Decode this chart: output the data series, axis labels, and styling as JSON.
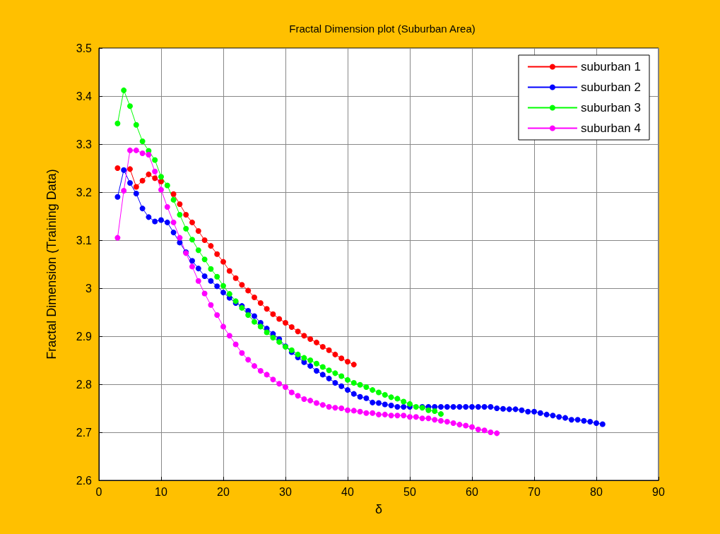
{
  "chart_data": {
    "type": "line",
    "title": "Fractal Dimension plot (Suburban Area)",
    "xlabel": "δ",
    "ylabel": "Fractal Dimension (Training Data)",
    "x": [
      3,
      4,
      5,
      6,
      7,
      8,
      9,
      10,
      11,
      12,
      13,
      14,
      15,
      16,
      17,
      18,
      19,
      20,
      21,
      22,
      23,
      24,
      25,
      26,
      27,
      28,
      29,
      30,
      31,
      32,
      33,
      34,
      35,
      36,
      37,
      38,
      39,
      40,
      41,
      42,
      43,
      44,
      45,
      46,
      47,
      48,
      49,
      50,
      51,
      52,
      53,
      54,
      55,
      56,
      57,
      58,
      59,
      60,
      61,
      62,
      63,
      64,
      65,
      66,
      67,
      68,
      69,
      70,
      71,
      72,
      73,
      74,
      75,
      76,
      77,
      78,
      79,
      80,
      81
    ],
    "series": [
      {
        "name": "suburban 1",
        "color": "#ff0000",
        "values": [
          3.25,
          null,
          3.248,
          3.211,
          3.224,
          3.237,
          3.229,
          3.222,
          null,
          3.196,
          3.175,
          3.153,
          3.137,
          3.119,
          3.1,
          3.088,
          3.071,
          3.055,
          3.036,
          3.021,
          3.007,
          2.995,
          2.981,
          2.969,
          2.957,
          2.946,
          2.936,
          2.928,
          2.919,
          2.91,
          2.901,
          2.894,
          2.887,
          2.878,
          2.871,
          2.862,
          2.854,
          2.847,
          2.841,
          null,
          null,
          null,
          null,
          null,
          null,
          null,
          null,
          null,
          null,
          null,
          null,
          null,
          null,
          null,
          null,
          null,
          null,
          null,
          null,
          null,
          null,
          null,
          null,
          null,
          null,
          null,
          null,
          null,
          null,
          null,
          null,
          null,
          null,
          null,
          null,
          null,
          null,
          null,
          null
        ]
      },
      {
        "name": "suburban 2",
        "color": "#0000ff",
        "values": [
          3.19,
          3.246,
          3.219,
          3.197,
          3.166,
          3.148,
          3.139,
          3.142,
          3.137,
          3.116,
          3.095,
          3.075,
          3.057,
          3.041,
          3.025,
          3.015,
          3.004,
          2.991,
          2.98,
          2.969,
          2.963,
          2.953,
          2.942,
          2.928,
          2.916,
          2.905,
          2.894,
          2.879,
          2.867,
          2.856,
          2.846,
          2.838,
          2.828,
          2.82,
          2.812,
          2.803,
          2.796,
          2.788,
          2.78,
          2.774,
          2.771,
          2.762,
          2.761,
          2.758,
          2.756,
          2.753,
          2.753,
          2.753,
          null,
          2.753,
          2.753,
          2.753,
          2.753,
          2.753,
          2.753,
          2.753,
          2.753,
          2.753,
          2.753,
          2.753,
          2.753,
          2.75,
          2.749,
          2.748,
          2.748,
          2.746,
          2.743,
          2.743,
          2.74,
          2.737,
          2.735,
          2.732,
          2.73,
          2.726,
          2.726,
          2.724,
          2.722,
          2.719,
          2.717
        ]
      },
      {
        "name": "suburban 3",
        "color": "#00ff00",
        "values": [
          3.343,
          3.412,
          3.379,
          3.34,
          3.306,
          3.286,
          3.267,
          3.232,
          3.214,
          3.184,
          3.153,
          3.124,
          3.101,
          3.079,
          3.06,
          3.04,
          3.024,
          3.005,
          2.988,
          2.973,
          2.959,
          2.944,
          2.93,
          2.92,
          2.908,
          2.897,
          2.888,
          2.878,
          2.871,
          2.862,
          2.855,
          2.85,
          2.843,
          2.836,
          2.829,
          2.823,
          2.817,
          2.809,
          2.803,
          2.799,
          2.794,
          2.788,
          2.783,
          2.778,
          2.773,
          2.77,
          2.764,
          2.759,
          2.753,
          2.751,
          2.746,
          2.744,
          2.738,
          null,
          null,
          null,
          null,
          null,
          null,
          null,
          null,
          null,
          null,
          null,
          null,
          null,
          null,
          null,
          null,
          null,
          null,
          null,
          null,
          null,
          null,
          null,
          null,
          null,
          null
        ]
      },
      {
        "name": "suburban 4",
        "color": "#ff00ff",
        "values": [
          3.105,
          3.203,
          3.287,
          3.287,
          3.281,
          3.278,
          3.243,
          3.205,
          3.169,
          3.137,
          3.105,
          3.073,
          3.045,
          3.015,
          2.989,
          2.965,
          2.944,
          2.92,
          2.901,
          2.883,
          2.865,
          2.851,
          2.838,
          2.828,
          2.82,
          2.81,
          2.801,
          2.794,
          2.783,
          2.776,
          2.769,
          2.766,
          2.761,
          2.757,
          2.753,
          2.751,
          2.75,
          2.746,
          2.745,
          2.743,
          2.74,
          2.74,
          2.737,
          2.737,
          2.735,
          2.735,
          2.735,
          2.732,
          2.732,
          2.729,
          2.729,
          2.726,
          2.724,
          2.722,
          2.719,
          2.716,
          2.714,
          2.711,
          2.706,
          2.704,
          2.7,
          2.698,
          null,
          null,
          null,
          null,
          null,
          null,
          null,
          null,
          null,
          null,
          null,
          null,
          null,
          null,
          null,
          null,
          null
        ]
      }
    ],
    "xlim": [
      0,
      90
    ],
    "xticks": [
      0,
      10,
      20,
      30,
      40,
      50,
      60,
      70,
      80,
      90
    ],
    "ylim": [
      2.6,
      3.5
    ],
    "yticks": [
      2.6,
      2.7,
      2.8,
      2.9,
      3,
      3.1,
      3.2,
      3.3,
      3.4,
      3.5
    ],
    "grid": true,
    "legend": "top right",
    "marker": "circle",
    "line_style": "solid"
  }
}
